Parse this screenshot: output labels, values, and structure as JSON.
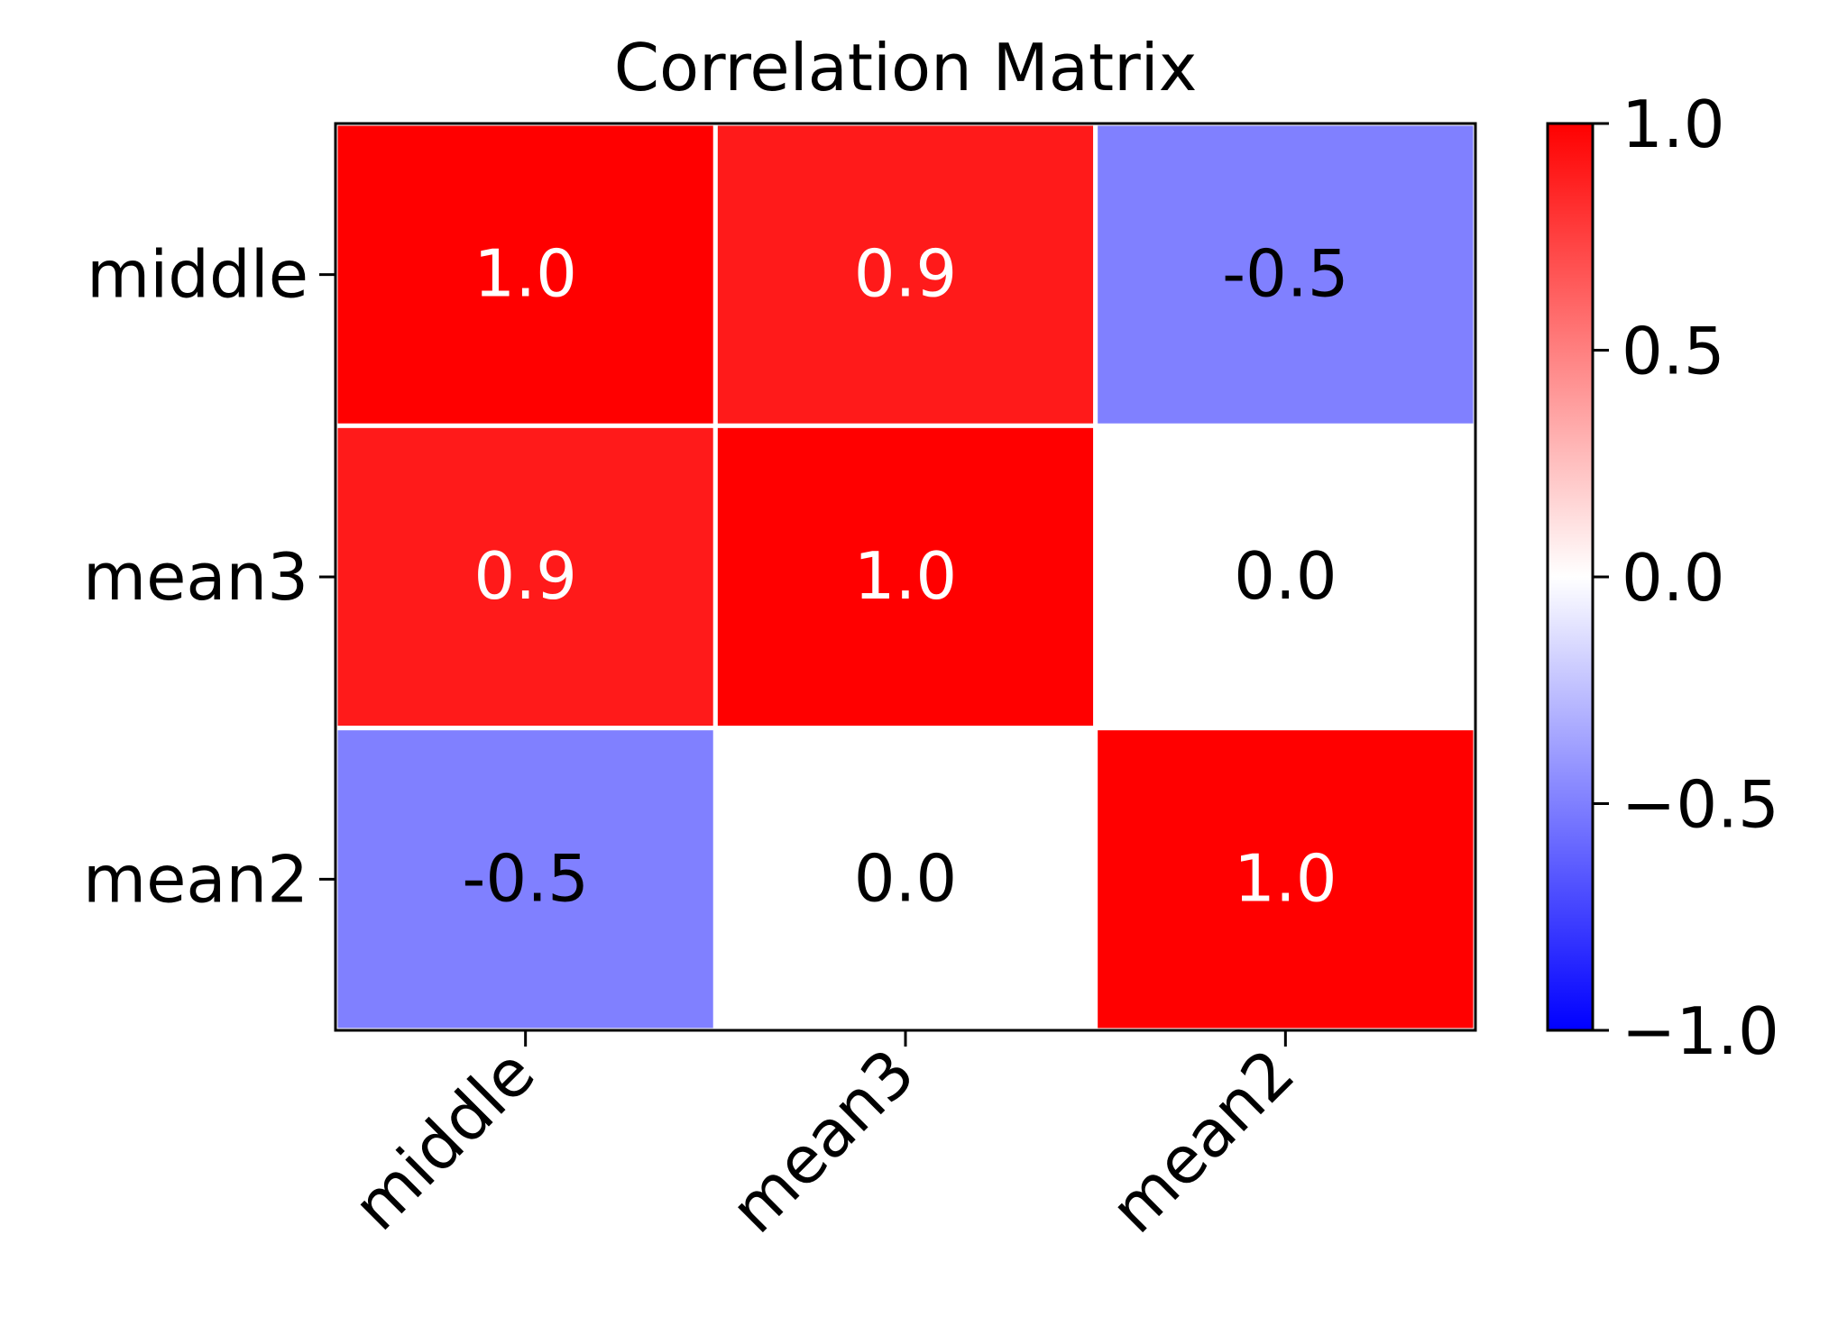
{
  "chart_data": {
    "type": "heatmap",
    "title": "Correlation Matrix",
    "rows": [
      "middle",
      "mean3",
      "mean2"
    ],
    "columns": [
      "middle",
      "mean3",
      "mean2"
    ],
    "values": [
      [
        1.0,
        0.9,
        -0.5
      ],
      [
        0.9,
        1.0,
        0.0
      ],
      [
        -0.5,
        0.0,
        1.0
      ]
    ],
    "cell_labels": [
      [
        "1.0",
        "0.9",
        "-0.5"
      ],
      [
        "0.9",
        "1.0",
        "0.0"
      ],
      [
        "-0.5",
        "0.0",
        "1.0"
      ]
    ],
    "colormap": {
      "low": "#0000ff",
      "mid": "#ffffff",
      "high": "#ff0000"
    },
    "vmin": -1.0,
    "vmax": 1.0,
    "colorbar": {
      "ticks": [
        1.0,
        0.5,
        0.0,
        -0.5,
        -1.0
      ],
      "tick_labels": [
        "1.0",
        "0.5",
        "0.0",
        "−0.5",
        "−1.0"
      ]
    },
    "xlabel": "",
    "ylabel": "",
    "x_tick_rotation": "45 degrees",
    "cell_separator_color": "#ffffff"
  }
}
